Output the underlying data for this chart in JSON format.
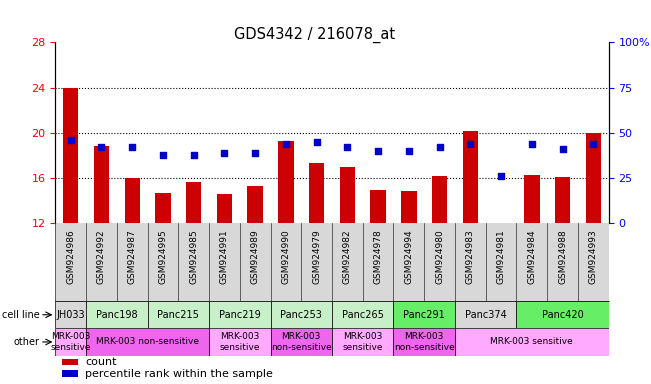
{
  "title": "GDS4342 / 216078_at",
  "samples": [
    "GSM924986",
    "GSM924992",
    "GSM924987",
    "GSM924995",
    "GSM924985",
    "GSM924991",
    "GSM924989",
    "GSM924990",
    "GSM924979",
    "GSM924982",
    "GSM924978",
    "GSM924994",
    "GSM924980",
    "GSM924983",
    "GSM924981",
    "GSM924984",
    "GSM924988",
    "GSM924993"
  ],
  "counts": [
    24.0,
    18.8,
    16.0,
    14.7,
    15.7,
    14.6,
    15.3,
    19.3,
    17.3,
    17.0,
    15.0,
    14.9,
    16.2,
    20.2,
    11.9,
    16.3,
    16.1,
    20.0
  ],
  "percentiles": [
    46,
    42,
    42,
    38,
    38,
    39,
    39,
    44,
    45,
    42,
    40,
    40,
    42,
    44,
    26,
    44,
    41,
    44
  ],
  "ylim_left": [
    12,
    28
  ],
  "ylim_right": [
    0,
    100
  ],
  "yticks_left": [
    12,
    16,
    20,
    24,
    28
  ],
  "yticks_right": [
    0,
    25,
    50,
    75,
    100
  ],
  "bar_color": "#cc0000",
  "dot_color": "#0000cc",
  "bar_bottom": 12,
  "cell_spans": [
    {
      "label": "JH033",
      "s": 0,
      "e": 1,
      "color": "#d8d8d8"
    },
    {
      "label": "Panc198",
      "s": 1,
      "e": 3,
      "color": "#c8f0c8"
    },
    {
      "label": "Panc215",
      "s": 3,
      "e": 5,
      "color": "#c8f0c8"
    },
    {
      "label": "Panc219",
      "s": 5,
      "e": 7,
      "color": "#c8f0c8"
    },
    {
      "label": "Panc253",
      "s": 7,
      "e": 9,
      "color": "#c8f0c8"
    },
    {
      "label": "Panc265",
      "s": 9,
      "e": 11,
      "color": "#c8f0c8"
    },
    {
      "label": "Panc291",
      "s": 11,
      "e": 13,
      "color": "#66ee66"
    },
    {
      "label": "Panc374",
      "s": 13,
      "e": 15,
      "color": "#d8d8d8"
    },
    {
      "label": "Panc420",
      "s": 15,
      "e": 18,
      "color": "#66ee66"
    }
  ],
  "other_spans": [
    {
      "label": "MRK-003\nsensitive",
      "s": 0,
      "e": 1,
      "color": "#ffaaff"
    },
    {
      "label": "MRK-003 non-sensitive",
      "s": 1,
      "e": 5,
      "color": "#ee66ee"
    },
    {
      "label": "MRK-003\nsensitive",
      "s": 5,
      "e": 7,
      "color": "#ffaaff"
    },
    {
      "label": "MRK-003\nnon-sensitive",
      "s": 7,
      "e": 9,
      "color": "#ee66ee"
    },
    {
      "label": "MRK-003\nsensitive",
      "s": 9,
      "e": 11,
      "color": "#ffaaff"
    },
    {
      "label": "MRK-003\nnon-sensitive",
      "s": 11,
      "e": 13,
      "color": "#ee66ee"
    },
    {
      "label": "MRK-003 sensitive",
      "s": 13,
      "e": 18,
      "color": "#ffaaff"
    }
  ],
  "xtick_bg": "#d8d8d8",
  "dotted_lines": [
    16,
    20,
    24
  ],
  "right_tick_labels": [
    "0",
    "25",
    "50",
    "75",
    "100%"
  ]
}
